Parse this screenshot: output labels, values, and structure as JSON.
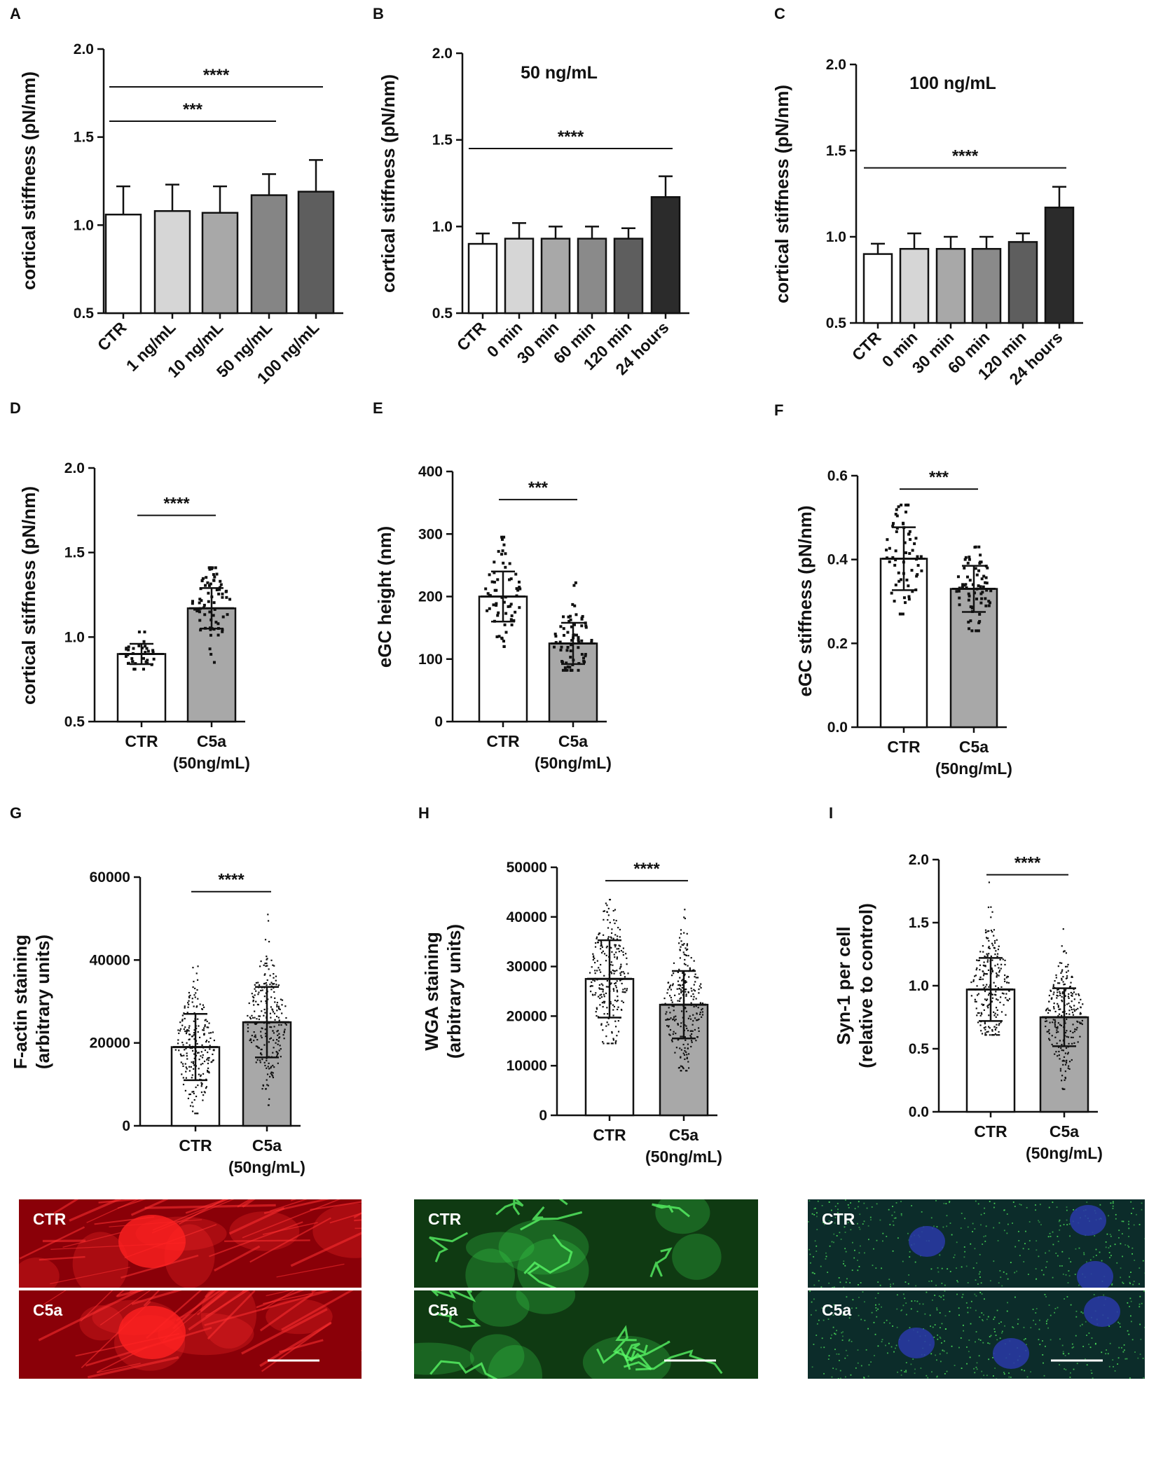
{
  "panels": [
    {
      "letter": "A",
      "ylabel": "cortical stiffness (pN/nm)"
    },
    {
      "letter": "B",
      "ylabel": "cortical stiffness (pN/nm)",
      "subtitle": "50 ng/mL"
    },
    {
      "letter": "C",
      "ylabel": "cortical stiffness (pN/nm)",
      "subtitle": "100 ng/mL"
    },
    {
      "letter": "D",
      "ylabel": "cortical stiffness (pN/nm)"
    },
    {
      "letter": "E",
      "ylabel": "eGC height (nm)"
    },
    {
      "letter": "F",
      "ylabel": "eGC stiffness (pN/nm)"
    },
    {
      "letter": "G",
      "ylabel_lines": [
        "F-actin staining",
        "(arbitrary units)"
      ]
    },
    {
      "letter": "H",
      "ylabel_lines": [
        "WGA staining",
        "(arbitrary units)"
      ]
    },
    {
      "letter": "I",
      "ylabel_lines": [
        "Syn-1 per cell",
        "(relative to control)"
      ]
    }
  ],
  "chart_data": [
    {
      "panel": "A",
      "type": "bar",
      "ylim": [
        0.5,
        2.0
      ],
      "yticks": [
        0.5,
        1.0,
        1.5,
        2.0
      ],
      "ytick_labels": [
        "0.5",
        "1.0",
        "1.5",
        "2.0"
      ],
      "categories": [
        "CTR",
        "1 ng/mL",
        "10 ng/mL",
        "50 ng/mL",
        "100 ng/mL"
      ],
      "values": [
        1.06,
        1.08,
        1.07,
        1.17,
        1.19
      ],
      "errors": [
        0.16,
        0.15,
        0.15,
        0.12,
        0.18
      ],
      "colors": [
        "#ffffff",
        "#d6d6d6",
        "#a8a8a8",
        "#858585",
        "#5e5e5e"
      ],
      "significance": [
        {
          "from": 0,
          "to": 4,
          "label": "****",
          "y": 1.785
        },
        {
          "from": 0,
          "to": 3,
          "label": "***",
          "y": 1.59
        }
      ]
    },
    {
      "panel": "B",
      "type": "bar",
      "ylim": [
        0.5,
        2.0
      ],
      "yticks": [
        0.5,
        1.0,
        1.5,
        2.0
      ],
      "ytick_labels": [
        "0.5",
        "1.0",
        "1.5",
        "2.0"
      ],
      "subtitle": "50 ng/mL",
      "categories": [
        "CTR",
        "0 min",
        "30 min",
        "60 min",
        "120 min",
        "24 hours"
      ],
      "values": [
        0.9,
        0.93,
        0.93,
        0.93,
        0.93,
        1.17
      ],
      "errors": [
        0.06,
        0.09,
        0.07,
        0.07,
        0.06,
        0.12
      ],
      "colors": [
        "#ffffff",
        "#d6d6d6",
        "#a8a8a8",
        "#8a8a8a",
        "#5e5e5e",
        "#2b2b2b"
      ],
      "significance": [
        {
          "from": 0,
          "to": 5,
          "label": "****",
          "y": 1.45
        }
      ]
    },
    {
      "panel": "C",
      "type": "bar",
      "ylim": [
        0.5,
        2.0
      ],
      "yticks": [
        0.5,
        1.0,
        1.5,
        2.0
      ],
      "ytick_labels": [
        "0.5",
        "1.0",
        "1.5",
        "2.0"
      ],
      "subtitle": "100 ng/mL",
      "categories": [
        "CTR",
        "0 min",
        "30 min",
        "60 min",
        "120 min",
        "24 hours"
      ],
      "values": [
        0.9,
        0.93,
        0.93,
        0.93,
        0.97,
        1.17
      ],
      "errors": [
        0.06,
        0.09,
        0.07,
        0.07,
        0.05,
        0.12
      ],
      "colors": [
        "#ffffff",
        "#d6d6d6",
        "#a8a8a8",
        "#8a8a8a",
        "#5e5e5e",
        "#2b2b2b"
      ],
      "significance": [
        {
          "from": 0,
          "to": 5,
          "label": "****",
          "y": 1.4
        }
      ]
    },
    {
      "panel": "D",
      "type": "bar",
      "ylim": [
        0.5,
        2.0
      ],
      "yticks": [
        0.5,
        1.0,
        1.5,
        2.0
      ],
      "ytick_labels": [
        "0.5",
        "1.0",
        "1.5",
        "2.0"
      ],
      "categories": [
        [
          "CTR"
        ],
        [
          "C5a",
          "(50ng/mL)"
        ]
      ],
      "values": [
        0.9,
        1.17
      ],
      "errors": [
        0.06,
        0.12
      ],
      "colors": [
        "#ffffff",
        "#a8a8a8"
      ],
      "points": {
        "n": [
          34,
          75
        ],
        "range": [
          [
            0.81,
            1.03
          ],
          [
            0.85,
            1.41
          ]
        ]
      },
      "significance": [
        {
          "from": 0,
          "to": 1,
          "label": "****",
          "y": 1.72
        }
      ]
    },
    {
      "panel": "E",
      "type": "bar",
      "ylim": [
        0,
        400
      ],
      "yticks": [
        0,
        100,
        200,
        300,
        400
      ],
      "ytick_labels": [
        "0",
        "100",
        "200",
        "300",
        "400"
      ],
      "categories": [
        [
          "CTR"
        ],
        [
          "C5a",
          "(50ng/mL)"
        ]
      ],
      "values": [
        200,
        125
      ],
      "errors": [
        40,
        33
      ],
      "colors": [
        "#ffffff",
        "#a8a8a8"
      ],
      "points": {
        "n": [
          62,
          70
        ],
        "range": [
          [
            120,
            295
          ],
          [
            82,
            222
          ]
        ]
      },
      "significance": [
        {
          "from": 0,
          "to": 1,
          "label": "***",
          "y": 355
        }
      ]
    },
    {
      "panel": "F",
      "type": "bar",
      "ylim": [
        0,
        0.6
      ],
      "yticks": [
        0.0,
        0.2,
        0.4,
        0.6
      ],
      "ytick_labels": [
        "0.0",
        "0.2",
        "0.4",
        "0.6"
      ],
      "categories": [
        [
          "CTR"
        ],
        [
          "C5a",
          "(50ng/mL)"
        ]
      ],
      "values": [
        0.402,
        0.33
      ],
      "errors": [
        0.075,
        0.055
      ],
      "colors": [
        "#ffffff",
        "#a8a8a8"
      ],
      "points": {
        "n": [
          62,
          70
        ],
        "range": [
          [
            0.27,
            0.53
          ],
          [
            0.23,
            0.43
          ]
        ]
      },
      "significance": [
        {
          "from": 0,
          "to": 1,
          "label": "***",
          "y": 0.568
        }
      ]
    },
    {
      "panel": "G",
      "type": "bar",
      "ylim": [
        0,
        60000
      ],
      "yticks": [
        0,
        20000,
        40000,
        60000
      ],
      "ytick_labels": [
        "0",
        "20000",
        "40000",
        "60000"
      ],
      "categories": [
        [
          "CTR"
        ],
        [
          "C5a",
          "(50ng/mL)"
        ]
      ],
      "values": [
        19000,
        25000
      ],
      "errors": [
        8000,
        8500
      ],
      "colors": [
        "#ffffff",
        "#a8a8a8"
      ],
      "points": {
        "n": [
          230,
          240
        ],
        "range": [
          [
            3000,
            38500
          ],
          [
            5000,
            51000
          ]
        ]
      },
      "significance": [
        {
          "from": 0,
          "to": 1,
          "label": "****",
          "y": 56500
        }
      ]
    },
    {
      "panel": "H",
      "type": "bar",
      "ylim": [
        0,
        50000
      ],
      "yticks": [
        0,
        10000,
        20000,
        30000,
        40000,
        50000
      ],
      "ytick_labels": [
        "0",
        "10000",
        "20000",
        "30000",
        "40000",
        "50000"
      ],
      "categories": [
        [
          "CTR"
        ],
        [
          "C5a",
          "(50ng/mL)"
        ]
      ],
      "values": [
        27500,
        22300
      ],
      "errors": [
        7800,
        6800
      ],
      "colors": [
        "#ffffff",
        "#a8a8a8"
      ],
      "points": {
        "n": [
          240,
          260
        ],
        "range": [
          [
            14500,
            43500
          ],
          [
            9000,
            41500
          ]
        ]
      },
      "significance": [
        {
          "from": 0,
          "to": 1,
          "label": "****",
          "y": 47300
        }
      ]
    },
    {
      "panel": "I",
      "type": "bar",
      "ylim": [
        0,
        2.0
      ],
      "yticks": [
        0.0,
        0.5,
        1.0,
        1.5,
        2.0
      ],
      "ytick_labels": [
        "0.0",
        "0.5",
        "1.0",
        "1.5",
        "2.0"
      ],
      "categories": [
        [
          "CTR"
        ],
        [
          "C5a",
          "(50ng/mL)"
        ]
      ],
      "values": [
        0.97,
        0.75
      ],
      "errors": [
        0.25,
        0.23
      ],
      "colors": [
        "#ffffff",
        "#a8a8a8"
      ],
      "points": {
        "n": [
          230,
          240
        ],
        "range": [
          [
            0.61,
            1.82
          ],
          [
            0.18,
            1.45
          ]
        ]
      },
      "significance": [
        {
          "from": 0,
          "to": 1,
          "label": "****",
          "y": 1.88
        }
      ]
    }
  ],
  "micrographs": [
    {
      "stain": "F-actin",
      "top_label": "CTR",
      "bottom_label": "C5a",
      "base": "#8a0008",
      "highlight": "#ff2a2a"
    },
    {
      "stain": "WGA",
      "top_label": "CTR",
      "bottom_label": "C5a",
      "base": "#0f3a12",
      "highlight": "#39d84a"
    },
    {
      "stain": "Syn-1",
      "top_label": "CTR",
      "bottom_label": "C5a",
      "base": "#0c2c2a",
      "highlight": "#39c84a",
      "nucleus": "#2a3aa8"
    }
  ]
}
